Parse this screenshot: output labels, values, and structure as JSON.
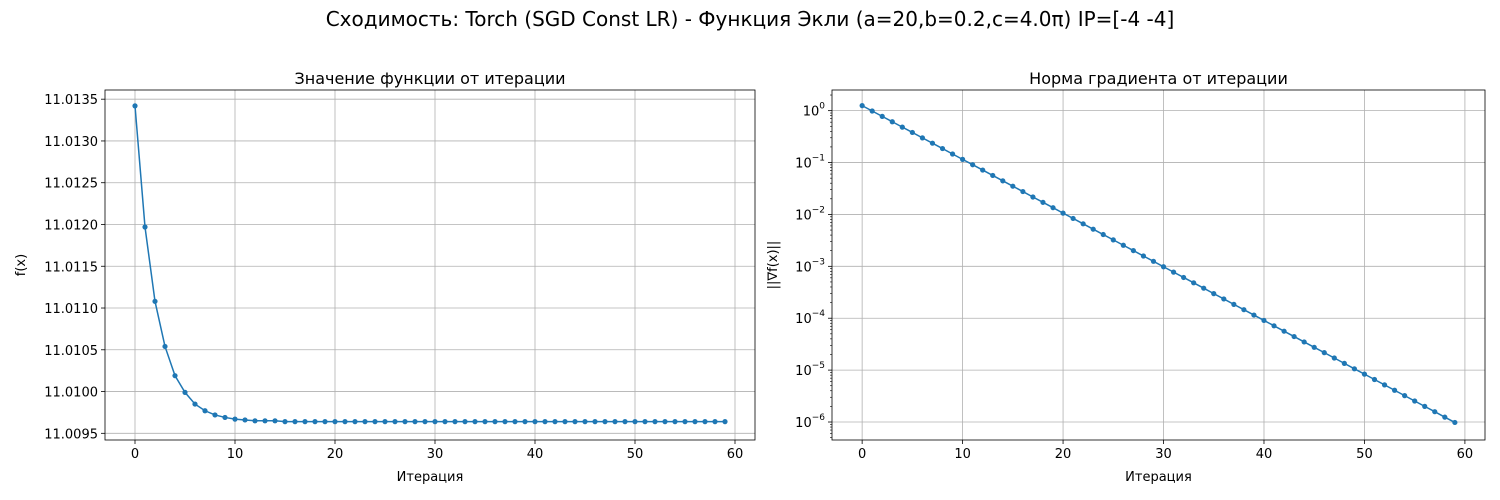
{
  "suptitle": "Сходимость: Torch (SGD Const LR) - Функция Экли (a=20,b=0.2,c=4.0π) IP=[-4 -4]",
  "colors": {
    "series": "#1f77b4",
    "grid": "#b0b0b0"
  },
  "chart_data": [
    {
      "type": "line",
      "title": "Значение функции от итерации",
      "xlabel": "Итерация",
      "ylabel": "f(x)",
      "xlim": [
        -3,
        62
      ],
      "ylim": [
        11.00942,
        11.01361
      ],
      "xticks": [
        0,
        10,
        20,
        30,
        40,
        50,
        60
      ],
      "yticks": [
        11.0095,
        11.01,
        11.0105,
        11.011,
        11.0115,
        11.012,
        11.0125,
        11.013,
        11.0135
      ],
      "ytick_labels": [
        "11.0095",
        "11.0100",
        "11.0105",
        "11.0110",
        "11.0115",
        "11.0120",
        "11.0125",
        "11.0130",
        "11.0135"
      ],
      "grid": true,
      "marker": "circle",
      "series": [
        {
          "x": [
            0,
            1,
            2,
            3,
            4,
            5,
            6,
            7,
            8,
            9,
            10,
            11,
            12,
            13,
            14,
            15,
            16,
            17,
            18,
            19,
            20,
            21,
            22,
            23,
            24,
            25,
            26,
            27,
            28,
            29,
            30,
            31,
            32,
            33,
            34,
            35,
            36,
            37,
            38,
            39,
            40,
            41,
            42,
            43,
            44,
            45,
            46,
            47,
            48,
            49,
            50,
            51,
            52,
            53,
            54,
            55,
            56,
            57,
            58,
            59
          ],
          "values": [
            11.01342,
            11.01197,
            11.01108,
            11.01054,
            11.01019,
            11.00999,
            11.00985,
            11.00977,
            11.00972,
            11.00969,
            11.00967,
            11.00966,
            11.00965,
            11.00965,
            11.00965,
            11.00964,
            11.00964,
            11.00964,
            11.00964,
            11.00964,
            11.00964,
            11.00964,
            11.00964,
            11.00964,
            11.00964,
            11.00964,
            11.00964,
            11.00964,
            11.00964,
            11.00964,
            11.00964,
            11.00964,
            11.00964,
            11.00964,
            11.00964,
            11.00964,
            11.00964,
            11.00964,
            11.00964,
            11.00964,
            11.00964,
            11.00964,
            11.00964,
            11.00964,
            11.00964,
            11.00964,
            11.00964,
            11.00964,
            11.00964,
            11.00964,
            11.00964,
            11.00964,
            11.00964,
            11.00964,
            11.00964,
            11.00964,
            11.00964,
            11.00964,
            11.00964,
            11.00964
          ]
        }
      ]
    },
    {
      "type": "line",
      "title": "Норма градиента от итерации",
      "xlabel": "Итерация",
      "ylabel": "||∇f(x)||",
      "yscale": "log",
      "xlim": [
        -3,
        62
      ],
      "ylim": [
        4.5e-07,
        2.5
      ],
      "xticks": [
        0,
        10,
        20,
        30,
        40,
        50,
        60
      ],
      "yticks_exponents": [
        0,
        -1,
        -2,
        -3,
        -4,
        -5,
        -6
      ],
      "grid": true,
      "marker": "circle",
      "series": [
        {
          "x": [
            0,
            1,
            2,
            3,
            4,
            5,
            6,
            7,
            8,
            9,
            10,
            11,
            12,
            13,
            14,
            15,
            16,
            17,
            18,
            19,
            20,
            21,
            22,
            23,
            24,
            25,
            26,
            27,
            28,
            29,
            30,
            31,
            32,
            33,
            34,
            35,
            36,
            37,
            38,
            39,
            40,
            41,
            42,
            43,
            44,
            45,
            46,
            47,
            48,
            49,
            50,
            51,
            52,
            53,
            54,
            55,
            56,
            57,
            58,
            59
          ],
          "values": [
            1.25,
            0.984,
            0.776,
            0.611,
            0.482,
            0.38,
            0.299,
            0.236,
            0.186,
            0.146,
            0.115,
            0.0908,
            0.0716,
            0.0564,
            0.0444,
            0.035,
            0.0276,
            0.0217,
            0.0171,
            0.0135,
            0.0106,
            0.00838,
            0.0066,
            0.0052,
            0.0041,
            0.00323,
            0.00255,
            0.00201,
            0.00158,
            0.00125,
            0.000982,
            0.000774,
            0.00061,
            0.000481,
            0.000379,
            0.000298,
            0.000235,
            0.000185,
            0.000146,
            0.000115,
            9.06e-05,
            7.14e-05,
            5.63e-05,
            4.43e-05,
            3.49e-05,
            2.75e-05,
            2.17e-05,
            1.71e-05,
            1.35e-05,
            1.06e-05,
            8.36e-06,
            6.59e-06,
            5.19e-06,
            4.09e-06,
            3.22e-06,
            2.54e-06,
            2e-06,
            1.58e-06,
            1.24e-06,
            9.8e-07
          ]
        }
      ]
    }
  ]
}
